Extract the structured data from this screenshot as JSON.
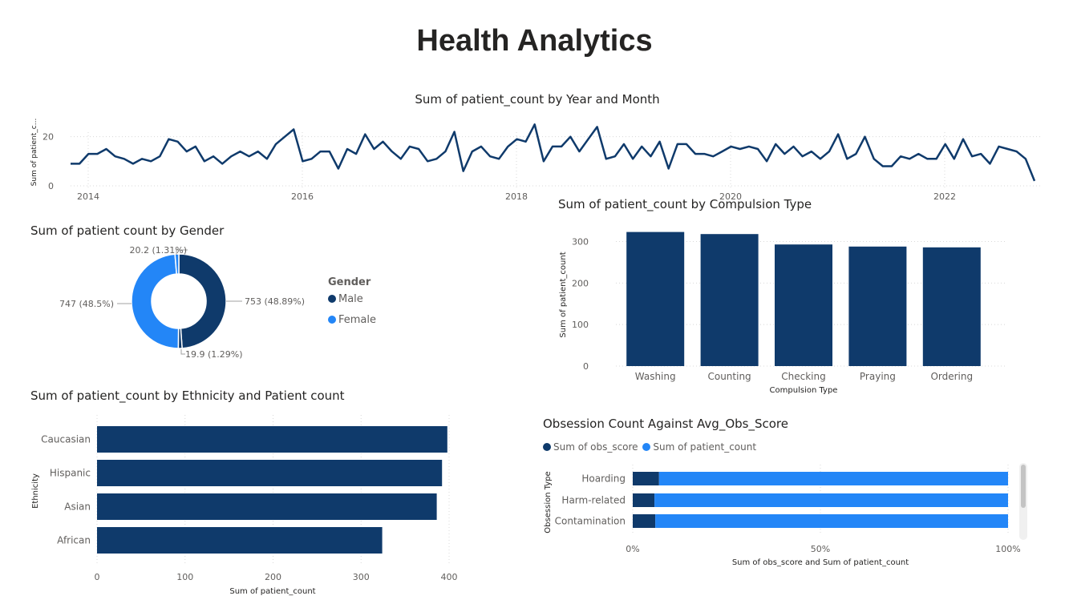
{
  "page_title": "Health Analytics",
  "colors": {
    "dark": "#0f3a6b",
    "light": "#2386f7",
    "grid": "#d8d8d8",
    "axis_text": "#605e5c"
  },
  "chart_data": [
    {
      "id": "line",
      "type": "line",
      "title": "Sum of patient_count by Year and Month",
      "ylabel": "Sum of patient_c...",
      "ylim": [
        0,
        30
      ],
      "yticks": [
        0,
        20
      ],
      "xtick_labels": [
        "2014",
        "2016",
        "2018",
        "2020",
        "2022"
      ],
      "values": [
        9,
        9,
        13,
        13,
        15,
        12,
        11,
        9,
        11,
        10,
        12,
        19,
        18,
        14,
        16,
        10,
        12,
        9,
        12,
        14,
        12,
        14,
        11,
        17,
        20,
        23,
        10,
        11,
        14,
        14,
        7,
        15,
        13,
        21,
        15,
        18,
        14,
        11,
        16,
        15,
        10,
        11,
        14,
        22,
        6,
        14,
        16,
        12,
        11,
        16,
        19,
        18,
        25,
        10,
        16,
        16,
        20,
        14,
        19,
        24,
        11,
        12,
        17,
        11,
        16,
        12,
        18,
        7,
        17,
        17,
        13,
        13,
        12,
        14,
        16,
        15,
        16,
        15,
        10,
        17,
        13,
        16,
        12,
        14,
        11,
        14,
        21,
        11,
        13,
        20,
        11,
        8,
        8,
        12,
        11,
        13,
        11,
        11,
        17,
        11,
        19,
        12,
        13,
        9,
        16,
        15,
        14,
        11,
        2
      ]
    },
    {
      "id": "donut",
      "type": "pie",
      "title": "Sum of patient count by Gender",
      "legend_title": "Gender",
      "legend_entries": [
        "Male",
        "Female"
      ],
      "slices": [
        {
          "value": 753,
          "label": "753 (48.89%)",
          "group": "Male"
        },
        {
          "value": 19.9,
          "label": "19.9 (1.29%)",
          "group": "Male"
        },
        {
          "value": 747,
          "label": "747 (48.5%)",
          "group": "Female"
        },
        {
          "value": 20.2,
          "label": "20.2 (1.31%)",
          "group": "Female"
        }
      ]
    },
    {
      "id": "compulsion",
      "type": "bar",
      "title": "Sum of patient_count by Compulsion Type",
      "xlabel": "Compulsion Type",
      "ylabel": "Sum of patient_count",
      "categories": [
        "Washing",
        "Counting",
        "Checking",
        "Praying",
        "Ordering"
      ],
      "values": [
        323,
        318,
        293,
        288,
        286
      ],
      "ylim": [
        0,
        330
      ],
      "yticks": [
        0,
        100,
        200,
        300
      ]
    },
    {
      "id": "ethnicity",
      "type": "bar",
      "orientation": "horizontal",
      "title": "Sum of patient_count by Ethnicity and Patient count",
      "xlabel": "Sum of patient_count",
      "ylabel": "Ethnicity",
      "categories": [
        "Caucasian",
        "Hispanic",
        "Asian",
        "African"
      ],
      "values": [
        398,
        392,
        386,
        324
      ],
      "xlim": [
        0,
        400
      ],
      "xticks": [
        0,
        100,
        200,
        300,
        400
      ]
    },
    {
      "id": "obsession",
      "type": "bar",
      "orientation": "horizontal",
      "stacked": "percent",
      "title": "Obsession Count Against Avg_Obs_Score",
      "xlabel": "Sum of obs_score and Sum of patient_count",
      "ylabel": "Obsession Type",
      "categories": [
        "Hoarding",
        "Harm-related",
        "Contamination"
      ],
      "series": [
        {
          "name": "Sum of obs_score",
          "values": [
            7,
            5.8,
            6
          ]
        },
        {
          "name": "Sum of patient_count",
          "values": [
            93,
            94.2,
            94
          ]
        }
      ],
      "xticks": [
        "0%",
        "50%",
        "100%"
      ]
    }
  ]
}
